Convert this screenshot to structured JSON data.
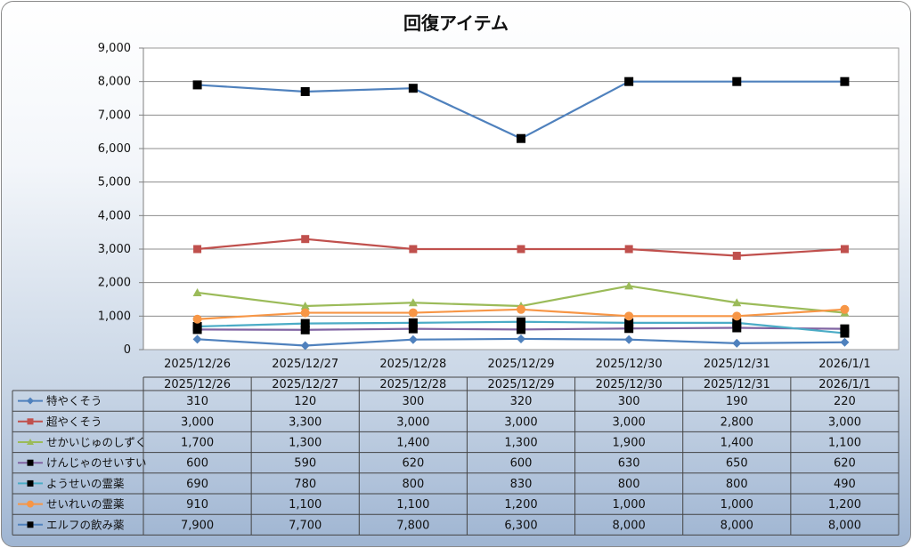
{
  "chart_data": {
    "type": "line",
    "title": "回復アイテム",
    "categories": [
      "2025/12/26",
      "2025/12/27",
      "2025/12/28",
      "2025/12/29",
      "2025/12/30",
      "2025/12/31",
      "2026/1/1"
    ],
    "ylim": [
      0,
      9000
    ],
    "yticks": [
      "0",
      "1,000",
      "2,000",
      "3,000",
      "4,000",
      "5,000",
      "6,000",
      "7,000",
      "8,000",
      "9,000"
    ],
    "grid": true,
    "legend": "data-table",
    "series": [
      {
        "name": "特やくそう",
        "color": "#4f81bd",
        "marker": "diamond",
        "values": [
          310,
          120,
          300,
          320,
          300,
          190,
          220
        ],
        "labels": [
          "310",
          "120",
          "300",
          "320",
          "300",
          "190",
          "220"
        ]
      },
      {
        "name": "超やくそう",
        "color": "#c0504d",
        "marker": "square",
        "values": [
          3000,
          3300,
          3000,
          3000,
          3000,
          2800,
          3000
        ],
        "labels": [
          "3,000",
          "3,300",
          "3,000",
          "3,000",
          "3,000",
          "2,800",
          "3,000"
        ]
      },
      {
        "name": "せかいじゅのしずく",
        "color": "#9bbb59",
        "marker": "triangle",
        "values": [
          1700,
          1300,
          1400,
          1300,
          1900,
          1400,
          1100
        ],
        "labels": [
          "1,700",
          "1,300",
          "1,400",
          "1,300",
          "1,900",
          "1,400",
          "1,100"
        ]
      },
      {
        "name": "けんじゃのせいすい",
        "color": "#8064a2",
        "marker": "blacksquare",
        "values": [
          600,
          590,
          620,
          600,
          630,
          650,
          620
        ],
        "labels": [
          "600",
          "590",
          "620",
          "600",
          "630",
          "650",
          "620"
        ]
      },
      {
        "name": "ようせいの霊薬",
        "color": "#4bacc6",
        "marker": "blacksquare",
        "values": [
          690,
          780,
          800,
          830,
          800,
          800,
          490
        ],
        "labels": [
          "690",
          "780",
          "800",
          "830",
          "800",
          "800",
          "490"
        ]
      },
      {
        "name": "せいれいの霊薬",
        "color": "#f79646",
        "marker": "circle",
        "values": [
          910,
          1100,
          1100,
          1200,
          1000,
          1000,
          1200
        ],
        "labels": [
          "910",
          "1,100",
          "1,100",
          "1,200",
          "1,000",
          "1,000",
          "1,200"
        ]
      },
      {
        "name": "エルフの飲み薬",
        "color": "#4f81bd",
        "marker": "blacksquare",
        "values": [
          7900,
          7700,
          7800,
          6300,
          8000,
          8000,
          8000
        ],
        "labels": [
          "7,900",
          "7,700",
          "7,800",
          "6,300",
          "8,000",
          "8,000",
          "8,000"
        ]
      }
    ]
  }
}
